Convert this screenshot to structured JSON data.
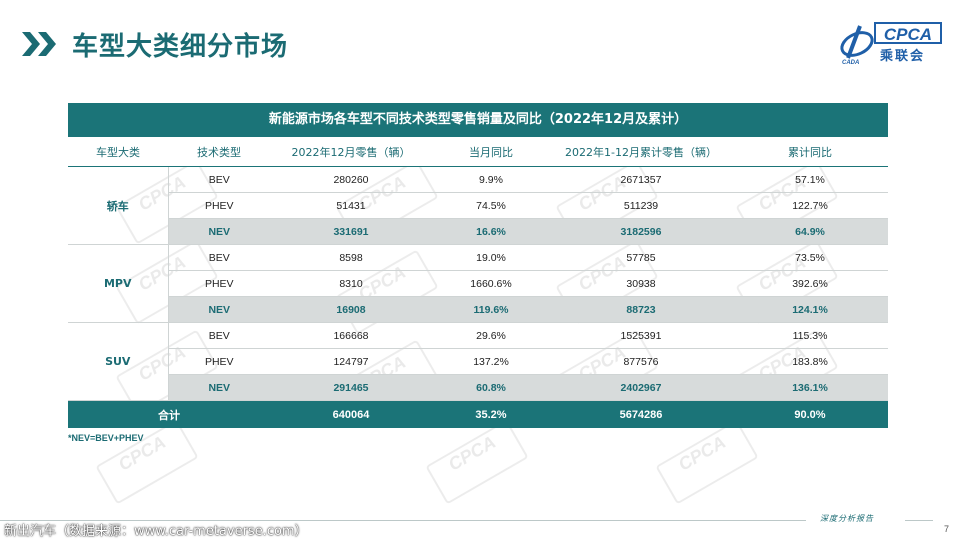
{
  "page": {
    "title": "车型大类细分市场",
    "page_number": "7"
  },
  "logo": {
    "text": "CPCA",
    "sub": "乘联会",
    "small": "CADA"
  },
  "watermark_text": "CPCA",
  "table": {
    "caption": "新能源市场各车型不同技术类型零售销量及同比（2022年12月及累计）",
    "headers": [
      "车型大类",
      "技术类型",
      "2022年12月零售（辆）",
      "当月同比",
      "2022年1-12月累计零售（辆）",
      "累计同比"
    ],
    "groups": [
      {
        "category": "轿车",
        "rows": [
          {
            "tech": "BEV",
            "dec": "280260",
            "mom": "9.9%",
            "ytd": "2671357",
            "ytd_yoy": "57.1%",
            "highlight": false
          },
          {
            "tech": "PHEV",
            "dec": "51431",
            "mom": "74.5%",
            "ytd": "511239",
            "ytd_yoy": "122.7%",
            "highlight": false
          },
          {
            "tech": "NEV",
            "dec": "331691",
            "mom": "16.6%",
            "ytd": "3182596",
            "ytd_yoy": "64.9%",
            "highlight": true
          }
        ]
      },
      {
        "category": "MPV",
        "rows": [
          {
            "tech": "BEV",
            "dec": "8598",
            "mom": "19.0%",
            "ytd": "57785",
            "ytd_yoy": "73.5%",
            "highlight": false
          },
          {
            "tech": "PHEV",
            "dec": "8310",
            "mom": "1660.6%",
            "ytd": "30938",
            "ytd_yoy": "392.6%",
            "highlight": false
          },
          {
            "tech": "NEV",
            "dec": "16908",
            "mom": "119.6%",
            "ytd": "88723",
            "ytd_yoy": "124.1%",
            "highlight": true
          }
        ]
      },
      {
        "category": "SUV",
        "rows": [
          {
            "tech": "BEV",
            "dec": "166668",
            "mom": "29.6%",
            "ytd": "1525391",
            "ytd_yoy": "115.3%",
            "highlight": false
          },
          {
            "tech": "PHEV",
            "dec": "124797",
            "mom": "137.2%",
            "ytd": "877576",
            "ytd_yoy": "183.8%",
            "highlight": false
          },
          {
            "tech": "NEV",
            "dec": "291465",
            "mom": "60.8%",
            "ytd": "2402967",
            "ytd_yoy": "136.1%",
            "highlight": true
          }
        ]
      }
    ],
    "total": {
      "label": "合计",
      "dec": "640064",
      "mom": "35.2%",
      "ytd": "5674286",
      "ytd_yoy": "90.0%"
    }
  },
  "note": "*NEV=BEV+PHEV",
  "footer": {
    "tagline": "深度分析报告",
    "source": "新出汽车（数据来源：www.car-metaverse.com）"
  },
  "colors": {
    "teal": "#1b7478",
    "nev_row": "#d7dbdb",
    "brand_blue": "#1f5fa8"
  }
}
